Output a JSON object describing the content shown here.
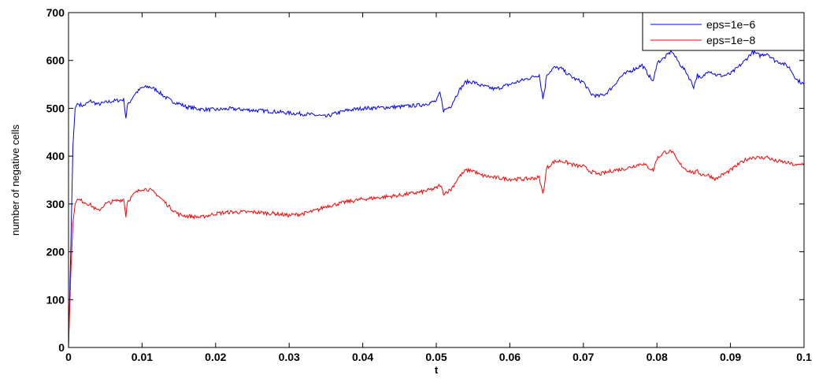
{
  "chart_data": {
    "type": "line",
    "title": "",
    "xlabel": "t",
    "ylabel": "number of negative cells",
    "xlim": [
      0,
      0.1
    ],
    "ylim": [
      0,
      700
    ],
    "xticks": [
      0,
      0.01,
      0.02,
      0.03,
      0.04,
      0.05,
      0.06,
      0.07,
      0.08,
      0.09,
      0.1
    ],
    "xtick_labels": [
      "0",
      "0.01",
      "0.02",
      "0.03",
      "0.04",
      "0.05",
      "0.06",
      "0.07",
      "0.08",
      "0.09",
      "0.1"
    ],
    "yticks": [
      0,
      100,
      200,
      300,
      400,
      500,
      600,
      700
    ],
    "ytick_labels": [
      "0",
      "100",
      "200",
      "300",
      "400",
      "500",
      "600",
      "700"
    ],
    "grid": false,
    "legend_position": "top-right",
    "series": [
      {
        "name": "eps=1e−6",
        "color": "#0000ff",
        "x": [
          0,
          0.0003,
          0.0006,
          0.0009,
          0.0012,
          0.002,
          0.003,
          0.004,
          0.005,
          0.006,
          0.0075,
          0.0078,
          0.008,
          0.009,
          0.01,
          0.011,
          0.012,
          0.013,
          0.014,
          0.015,
          0.016,
          0.018,
          0.02,
          0.022,
          0.025,
          0.028,
          0.03,
          0.032,
          0.034,
          0.035,
          0.036,
          0.038,
          0.04,
          0.042,
          0.045,
          0.048,
          0.05,
          0.0505,
          0.051,
          0.052,
          0.053,
          0.054,
          0.055,
          0.056,
          0.058,
          0.06,
          0.062,
          0.064,
          0.0645,
          0.0648,
          0.065,
          0.066,
          0.067,
          0.068,
          0.069,
          0.07,
          0.071,
          0.072,
          0.073,
          0.074,
          0.075,
          0.076,
          0.078,
          0.0795,
          0.08,
          0.081,
          0.082,
          0.083,
          0.084,
          0.085,
          0.0855,
          0.086,
          0.087,
          0.088,
          0.089,
          0.09,
          0.091,
          0.092,
          0.093,
          0.094,
          0.095,
          0.096,
          0.097,
          0.098,
          0.099,
          0.1
        ],
        "y": [
          0,
          200,
          420,
          500,
          510,
          505,
          515,
          508,
          512,
          515,
          518,
          480,
          505,
          530,
          543,
          545,
          538,
          525,
          515,
          510,
          503,
          498,
          497,
          499,
          496,
          493,
          490,
          488,
          485,
          482,
          488,
          496,
          500,
          501,
          503,
          507,
          515,
          532,
          495,
          505,
          535,
          555,
          555,
          548,
          540,
          550,
          560,
          570,
          520,
          545,
          570,
          585,
          583,
          570,
          560,
          555,
          530,
          525,
          530,
          545,
          565,
          575,
          590,
          555,
          595,
          605,
          620,
          595,
          575,
          545,
          570,
          560,
          580,
          570,
          568,
          572,
          585,
          600,
          618,
          610,
          615,
          600,
          595,
          585,
          560,
          550
        ]
      },
      {
        "name": "eps=1e−8",
        "color": "#ff0000",
        "x": [
          0,
          0.0003,
          0.0006,
          0.0009,
          0.0012,
          0.002,
          0.003,
          0.004,
          0.005,
          0.006,
          0.0075,
          0.0078,
          0.008,
          0.009,
          0.01,
          0.011,
          0.012,
          0.013,
          0.014,
          0.015,
          0.016,
          0.018,
          0.02,
          0.022,
          0.025,
          0.028,
          0.03,
          0.032,
          0.034,
          0.035,
          0.036,
          0.038,
          0.04,
          0.042,
          0.045,
          0.048,
          0.05,
          0.0505,
          0.051,
          0.052,
          0.053,
          0.054,
          0.055,
          0.056,
          0.058,
          0.06,
          0.062,
          0.064,
          0.0645,
          0.0648,
          0.065,
          0.066,
          0.067,
          0.068,
          0.069,
          0.07,
          0.071,
          0.072,
          0.073,
          0.074,
          0.075,
          0.076,
          0.078,
          0.0795,
          0.08,
          0.081,
          0.082,
          0.083,
          0.084,
          0.085,
          0.0855,
          0.086,
          0.087,
          0.088,
          0.089,
          0.09,
          0.091,
          0.092,
          0.093,
          0.094,
          0.095,
          0.096,
          0.097,
          0.098,
          0.099,
          0.1
        ],
        "y": [
          0,
          150,
          260,
          300,
          310,
          305,
          298,
          285,
          300,
          305,
          310,
          275,
          305,
          322,
          332,
          330,
          320,
          305,
          290,
          278,
          275,
          272,
          280,
          283,
          283,
          280,
          276,
          280,
          288,
          295,
          298,
          305,
          310,
          313,
          318,
          325,
          333,
          340,
          322,
          330,
          355,
          370,
          370,
          360,
          355,
          352,
          352,
          355,
          320,
          350,
          375,
          388,
          390,
          385,
          380,
          378,
          368,
          362,
          365,
          370,
          372,
          375,
          385,
          370,
          395,
          408,
          410,
          385,
          372,
          365,
          368,
          362,
          360,
          352,
          362,
          370,
          382,
          392,
          398,
          396,
          398,
          390,
          388,
          385,
          380,
          385
        ]
      }
    ]
  }
}
